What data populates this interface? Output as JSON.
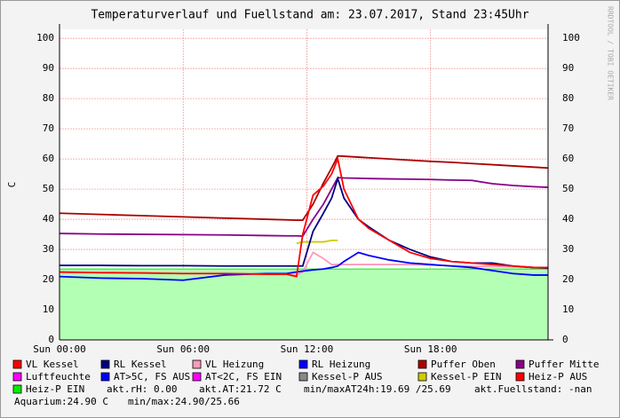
{
  "chart_data": {
    "type": "line",
    "title": "Temperaturverlauf und Fuellstand am: 23.07.2017, Stand 23:45Uhr",
    "y_label": "C",
    "watermark": "RRDTOOL / TOBI OETIKER",
    "x": [
      0,
      2,
      4,
      6,
      8,
      10,
      11,
      11.5,
      11.8,
      12.3,
      12.8,
      13.2,
      13.5,
      13.8,
      14.5,
      15,
      16,
      17,
      18,
      19,
      20,
      21,
      22,
      23,
      23.7
    ],
    "xlim": [
      0,
      23.7
    ],
    "xticks": [
      {
        "value": 0,
        "label": "Sun 00:00"
      },
      {
        "value": 6,
        "label": "Sun 06:00"
      },
      {
        "value": 12,
        "label": "Sun 12:00"
      },
      {
        "value": 18,
        "label": "Sun 18:00"
      }
    ],
    "ylim": [
      0,
      103
    ],
    "yticks": [
      0,
      10,
      20,
      30,
      40,
      50,
      60,
      70,
      80,
      90,
      100
    ],
    "grid": true,
    "series": [
      {
        "name": "VL Kessel",
        "color": "#ff0000",
        "values": [
          22.5,
          22.3,
          22.2,
          22,
          22,
          21.8,
          21.8,
          21,
          35,
          48,
          51,
          55,
          60,
          50,
          40,
          37,
          33,
          29,
          27,
          26,
          25.5,
          25,
          24.5,
          24,
          24
        ]
      },
      {
        "name": "RL Kessel",
        "color": "#000080",
        "values": [
          24.7,
          24.7,
          24.6,
          24.6,
          24.5,
          24.5,
          24.5,
          24.5,
          24.5,
          36,
          42,
          47,
          53.5,
          47,
          40,
          37.5,
          33,
          30,
          27.5,
          26,
          25.5,
          25.5,
          24.5,
          24,
          23.8
        ]
      },
      {
        "name": "VL Heizung",
        "color": "#ff99bb",
        "values": [
          22.5,
          22.3,
          22.2,
          22,
          22,
          21.8,
          21.8,
          21.5,
          22.5,
          29,
          27,
          25,
          25,
          25,
          25,
          25,
          25,
          25,
          24.8,
          24.6,
          24.4,
          24.3,
          24.2,
          24,
          24
        ]
      },
      {
        "name": "RL Heizung",
        "color": "#0000ff",
        "values": [
          21,
          20.5,
          20.3,
          19.8,
          21.5,
          22,
          22,
          22.5,
          22.8,
          23.2,
          23.5,
          24,
          24.5,
          26,
          29,
          28,
          26.5,
          25.5,
          25,
          24.5,
          24,
          23,
          22,
          21.5,
          21.5
        ]
      },
      {
        "name": "Puffer Oben",
        "color": "#aa0000",
        "values": [
          42,
          41.6,
          41.2,
          40.8,
          40.4,
          40,
          39.8,
          39.7,
          39.7,
          45,
          52,
          57,
          61,
          60.9,
          60.6,
          60.4,
          60,
          59.6,
          59.2,
          58.9,
          58.5,
          58.1,
          57.7,
          57.3,
          57
        ]
      },
      {
        "name": "Puffer Mitte",
        "color": "#880088",
        "values": [
          35.3,
          35.1,
          35,
          34.9,
          34.8,
          34.6,
          34.5,
          34.5,
          34.4,
          40,
          45,
          50,
          53.8,
          53.7,
          53.6,
          53.5,
          53.4,
          53.3,
          53.2,
          53,
          52.9,
          51.8,
          51.2,
          50.8,
          50.6
        ]
      },
      {
        "name": "Luftfeuchte",
        "color": "#ff00ff"
      },
      {
        "name": "AT>5C, FS AUS",
        "color": "#0000ff"
      },
      {
        "name": "AT<2C, FS EIN",
        "color": "#ff00ff"
      },
      {
        "name": "Kessel-P AUS",
        "color": "#888888"
      },
      {
        "name": "Kessel-P EIN",
        "color": "#cccc00",
        "values": [
          null,
          null,
          null,
          null,
          null,
          null,
          null,
          32,
          32.5,
          32.5,
          32.5,
          33,
          33,
          null,
          null,
          null,
          null,
          null,
          null,
          null,
          null,
          null,
          null,
          null,
          null
        ]
      },
      {
        "name": "Heiz-P AUS",
        "color": "#ff0000"
      },
      {
        "name": "Heiz-P EIN",
        "color": "#00ee00",
        "area": true,
        "fill": "#b3ffb3",
        "values": [
          23.5,
          23.5,
          23.5,
          23.5,
          23.5,
          23.5,
          23.5,
          23.5,
          23.5,
          23.5,
          23.5,
          23.5,
          23.5,
          23.5,
          23.5,
          23.5,
          23.5,
          23.5,
          23.5,
          23.5,
          23.5,
          23.5,
          23.5,
          23.5,
          23.5
        ]
      }
    ],
    "draw_order": [
      12,
      4,
      5,
      2,
      3,
      10,
      1,
      0
    ],
    "info": [
      "akt.rH: 0.00",
      "akt.AT:21.72 C",
      "min/maxAT24h:19.69 /25.69",
      "akt.Fuellstand: -nan"
    ],
    "info2": [
      "Aquarium:24.90 C",
      "min/max:24.90/25.66"
    ]
  }
}
